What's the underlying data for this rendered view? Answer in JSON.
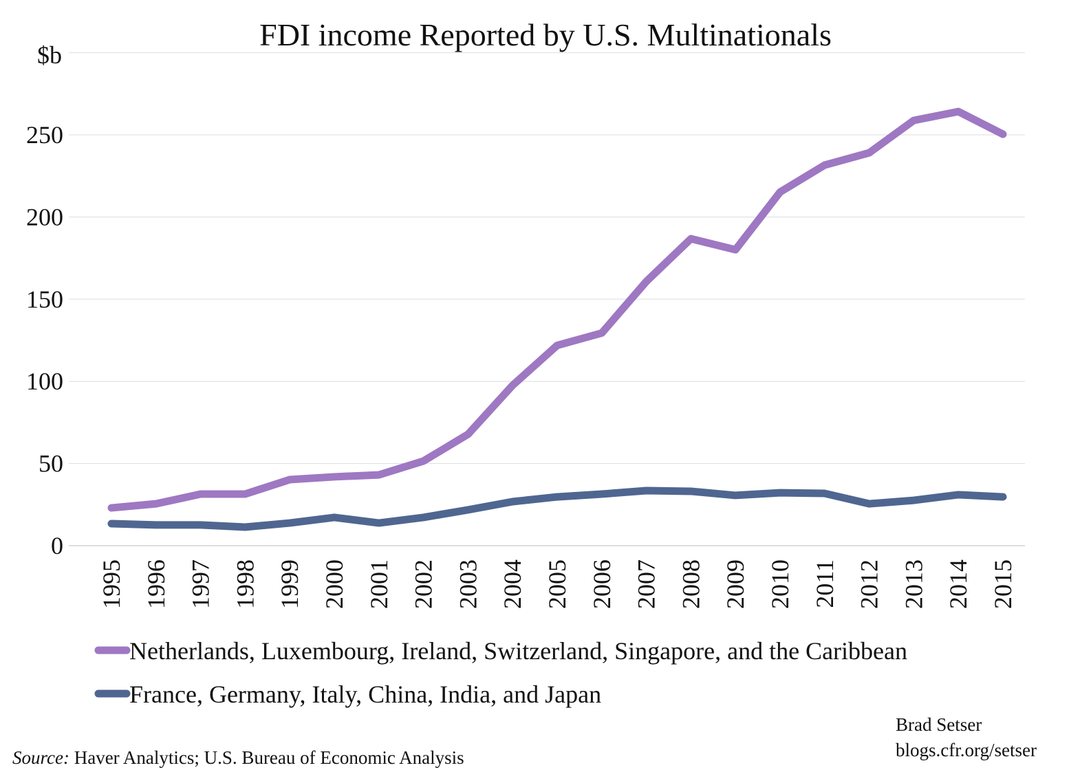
{
  "chart_data": {
    "type": "line",
    "title": "FDI income Reported by U.S. Multinationals",
    "ylabel": "$b",
    "xlabel": "",
    "ylim": [
      0,
      300
    ],
    "yticks": [
      "0",
      "50",
      "100",
      "150",
      "200",
      "250"
    ],
    "ytick_values": [
      0,
      50,
      100,
      150,
      200,
      250
    ],
    "grid": true,
    "legend_position": "bottom",
    "categories": [
      "1995",
      "1996",
      "1997",
      "1998",
      "1999",
      "2000",
      "2001",
      "2002",
      "2003",
      "2004",
      "2005",
      "2006",
      "2007",
      "2008",
      "2009",
      "2010",
      "2011",
      "2012",
      "2013",
      "2014",
      "2015"
    ],
    "series": [
      {
        "name": "Netherlands, Luxembourg, Ireland, Switzerland, Singapore, and the Caribbean",
        "color": "#9e78c2",
        "values": [
          23,
          25.5,
          31.4,
          31.4,
          40.2,
          41.9,
          43.1,
          51.5,
          67.8,
          97.6,
          121.9,
          129.4,
          160.8,
          186.8,
          180.1,
          215.2,
          231.6,
          239.1,
          258.8,
          264.2,
          250.4
        ]
      },
      {
        "name": "France, Germany, Italy, China, India, and Japan",
        "color": "#4f6690",
        "values": [
          13.4,
          12.6,
          12.6,
          11.3,
          13.8,
          17.2,
          13.8,
          17.2,
          21.8,
          26.8,
          29.7,
          31.4,
          33.5,
          33.1,
          30.6,
          32.2,
          31.8,
          25.5,
          27.6,
          31.0,
          29.7
        ]
      }
    ]
  },
  "footer": {
    "source_label": "Source:",
    "source_text": " Haver Analytics; U.S. Bureau of Economic Analysis",
    "author": "Brad Setser",
    "url": "blogs.cfr.org/setser"
  }
}
